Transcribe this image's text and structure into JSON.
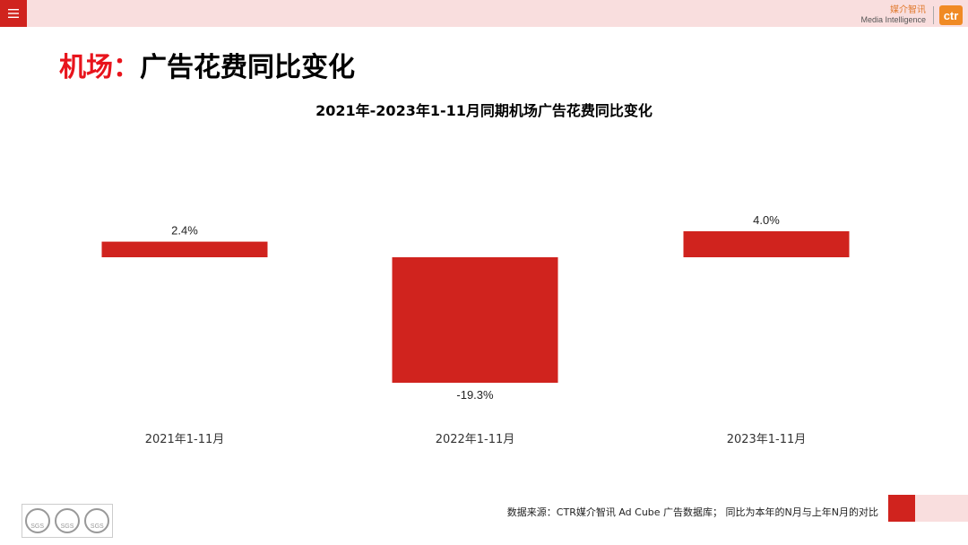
{
  "header": {
    "menu_icon": "menu-icon",
    "logo_cn": "媒介智讯",
    "logo_en": "Media Intelligence",
    "logo_mark": "ctr"
  },
  "page": {
    "title_highlight": "机场：",
    "title_rest": "广告花费同比变化"
  },
  "chart_data": {
    "type": "bar",
    "title": "2021年-2023年1-11月同期机场广告花费同比变化",
    "categories": [
      "2021年1-11月",
      "2022年1-11月",
      "2023年1-11月"
    ],
    "values": [
      2.4,
      -19.3,
      4.0
    ],
    "value_labels": [
      "2.4%",
      "-19.3%",
      "4.0%"
    ],
    "bar_color": "#d0231e",
    "xlabel": "",
    "ylabel": "",
    "grid": false,
    "legend": "none"
  },
  "footer": {
    "source": "数据来源：CTR媒介智讯 Ad Cube 广告数据库；  同比为本年的N月与上年N月的对比",
    "badge_text": "SGS"
  },
  "colors": {
    "accent": "#d0231e",
    "title_red": "#e8141c",
    "band_pink": "#f9dede"
  }
}
